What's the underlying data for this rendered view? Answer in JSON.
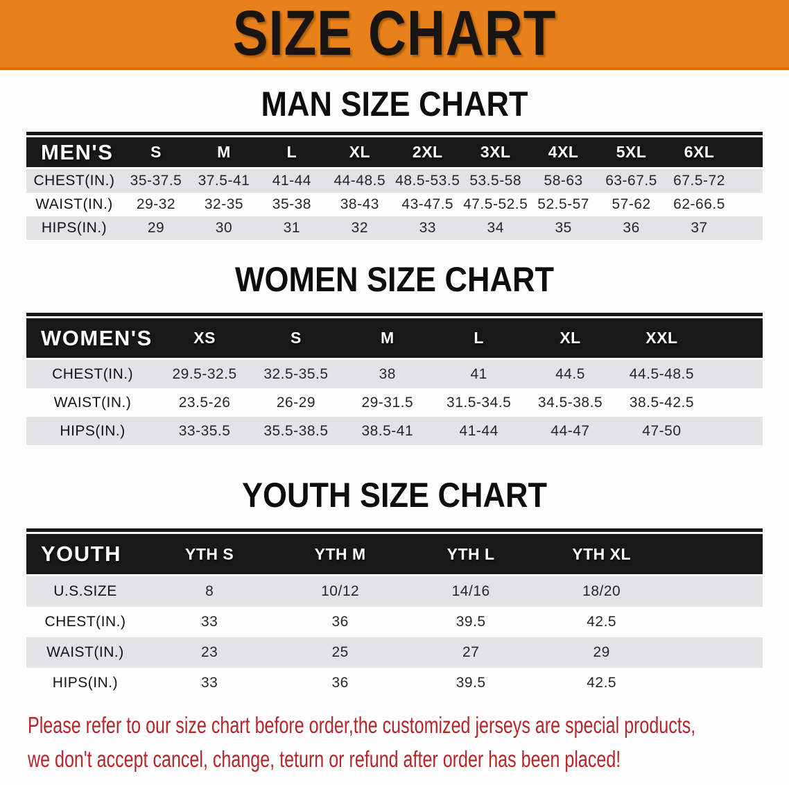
{
  "banner": {
    "title": "SIZE CHART"
  },
  "colors": {
    "banner_bg": "#e8811a",
    "header_row_bg": "#181818",
    "row_alt_bg": "#e3e3e5",
    "disclaimer_color": "#b3262a"
  },
  "sections": [
    {
      "heading": "MAN SIZE CHART",
      "table": {
        "corner": "MEN'S",
        "columns": [
          "S",
          "M",
          "L",
          "XL",
          "2XL",
          "3XL",
          "4XL",
          "5XL",
          "6XL"
        ],
        "rows": [
          {
            "label": "CHEST(IN.)",
            "values": [
              "35-37.5",
              "37.5-41",
              "41-44",
              "44-48.5",
              "48.5-53.5",
              "53.5-58",
              "58-63",
              "63-67.5",
              "67.5-72"
            ]
          },
          {
            "label": "WAIST(IN.)",
            "values": [
              "29-32",
              "32-35",
              "35-38",
              "38-43",
              "43-47.5",
              "47.5-52.5",
              "52.5-57",
              "57-62",
              "62-66.5"
            ]
          },
          {
            "label": "HIPS(IN.)",
            "values": [
              "29",
              "30",
              "31",
              "32",
              "33",
              "34",
              "35",
              "36",
              "37"
            ]
          }
        ]
      }
    },
    {
      "heading": "WOMEN SIZE CHART",
      "table": {
        "corner": "WOMEN'S",
        "columns": [
          "XS",
          "S",
          "M",
          "L",
          "XL",
          "XXL"
        ],
        "rows": [
          {
            "label": "CHEST(IN.)",
            "values": [
              "29.5-32.5",
              "32.5-35.5",
              "38",
              "41",
              "44.5",
              "44.5-48.5"
            ]
          },
          {
            "label": "WAIST(IN.)",
            "values": [
              "23.5-26",
              "26-29",
              "29-31.5",
              "31.5-34.5",
              "34.5-38.5",
              "38.5-42.5"
            ]
          },
          {
            "label": "HIPS(IN.)",
            "values": [
              "33-35.5",
              "35.5-38.5",
              "38.5-41",
              "41-44",
              "44-47",
              "47-50"
            ]
          }
        ]
      }
    },
    {
      "heading": "YOUTH SIZE CHART",
      "table": {
        "corner": "YOUTH",
        "columns": [
          "YTH S",
          "YTH M",
          "YTH L",
          "YTH XL"
        ],
        "rows": [
          {
            "label": "U.S.SIZE",
            "values": [
              "8",
              "10/12",
              "14/16",
              "18/20"
            ]
          },
          {
            "label": "CHEST(IN.)",
            "values": [
              "33",
              "36",
              "39.5",
              "42.5"
            ]
          },
          {
            "label": "WAIST(IN.)",
            "values": [
              "23",
              "25",
              "27",
              "29"
            ]
          },
          {
            "label": "HIPS(IN.)",
            "values": [
              "33",
              "36",
              "39.5",
              "42.5"
            ]
          }
        ]
      }
    }
  ],
  "disclaimer": {
    "line1": "Please refer to our size chart before order,the customized jerseys are special products,",
    "line2": "we don't accept cancel, change, teturn or refund after order has been placed!"
  }
}
